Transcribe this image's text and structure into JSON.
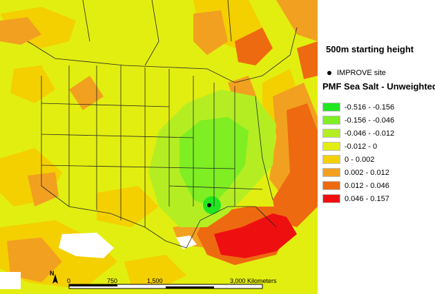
{
  "panel": {
    "height_title": "500m starting height",
    "site_label": "IMPROVE site",
    "legend_title": "PMF Sea Salt - Unweighted"
  },
  "legend": [
    {
      "label": "-0.516 - -0.156",
      "color": "#22e622"
    },
    {
      "label": "-0.156 - -0.046",
      "color": "#7fee22"
    },
    {
      "label": "-0.046 - -0.012",
      "color": "#b4ee22"
    },
    {
      "label": "-0.012 - 0",
      "color": "#e2ee10"
    },
    {
      "label": "0 - 0.002",
      "color": "#f4d000"
    },
    {
      "label": "0.002 - 0.012",
      "color": "#f2a020"
    },
    {
      "label": "0.012 - 0.046",
      "color": "#ee6a10"
    },
    {
      "label": "0.046 - 0.157",
      "color": "#ee1010"
    }
  ],
  "map": {
    "north_label": "N",
    "scale_labels": [
      "0",
      "750",
      "1,500",
      "3,000 Kilometers"
    ]
  }
}
